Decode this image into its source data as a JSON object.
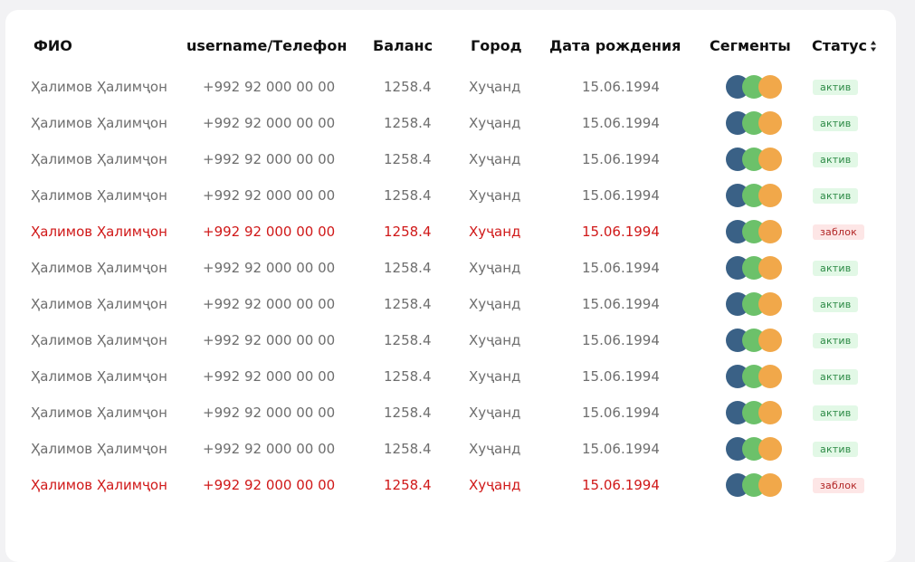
{
  "header": {
    "name": "ФИО",
    "phone": "username/Телефон",
    "balance": "Баланс",
    "city": "Город",
    "birthdate": "Дата рождения",
    "segments": "Сегменты",
    "status": "Статус"
  },
  "segment_colors": [
    "#3a6186",
    "#6cc16a",
    "#f1a84a"
  ],
  "status_colors": {
    "active_bg": "#e2f8e6",
    "active_text": "#2c8a45",
    "blocked_bg": "#fde6e6",
    "blocked_text": "#b12424",
    "blocked_row_text": "#d01818"
  },
  "rows": [
    {
      "name": "Ҳалимов Ҳалимҷон",
      "phone": "+992 92 000 00 00",
      "balance": "1258.4",
      "city": "Хуҷанд",
      "birthdate": "15.06.1994",
      "status": "актив",
      "blocked": false
    },
    {
      "name": "Ҳалимов Ҳалимҷон",
      "phone": "+992 92 000 00 00",
      "balance": "1258.4",
      "city": "Хуҷанд",
      "birthdate": "15.06.1994",
      "status": "актив",
      "blocked": false
    },
    {
      "name": "Ҳалимов Ҳалимҷон",
      "phone": "+992 92 000 00 00",
      "balance": "1258.4",
      "city": "Хуҷанд",
      "birthdate": "15.06.1994",
      "status": "актив",
      "blocked": false
    },
    {
      "name": "Ҳалимов Ҳалимҷон",
      "phone": "+992 92 000 00 00",
      "balance": "1258.4",
      "city": "Хуҷанд",
      "birthdate": "15.06.1994",
      "status": "актив",
      "blocked": false
    },
    {
      "name": "Ҳалимов Ҳалимҷон",
      "phone": "+992 92 000 00 00",
      "balance": "1258.4",
      "city": "Хуҷанд",
      "birthdate": "15.06.1994",
      "status": "заблок",
      "blocked": true
    },
    {
      "name": "Ҳалимов Ҳалимҷон",
      "phone": "+992 92 000 00 00",
      "balance": "1258.4",
      "city": "Хуҷанд",
      "birthdate": "15.06.1994",
      "status": "актив",
      "blocked": false
    },
    {
      "name": "Ҳалимов Ҳалимҷон",
      "phone": "+992 92 000 00 00",
      "balance": "1258.4",
      "city": "Хуҷанд",
      "birthdate": "15.06.1994",
      "status": "актив",
      "blocked": false
    },
    {
      "name": "Ҳалимов Ҳалимҷон",
      "phone": "+992 92 000 00 00",
      "balance": "1258.4",
      "city": "Хуҷанд",
      "birthdate": "15.06.1994",
      "status": "актив",
      "blocked": false
    },
    {
      "name": "Ҳалимов Ҳалимҷон",
      "phone": "+992 92 000 00 00",
      "balance": "1258.4",
      "city": "Хуҷанд",
      "birthdate": "15.06.1994",
      "status": "актив",
      "blocked": false
    },
    {
      "name": "Ҳалимов Ҳалимҷон",
      "phone": "+992 92 000 00 00",
      "balance": "1258.4",
      "city": "Хуҷанд",
      "birthdate": "15.06.1994",
      "status": "актив",
      "blocked": false
    },
    {
      "name": "Ҳалимов Ҳалимҷон",
      "phone": "+992 92 000 00 00",
      "balance": "1258.4",
      "city": "Хуҷанд",
      "birthdate": "15.06.1994",
      "status": "актив",
      "blocked": false
    },
    {
      "name": "Ҳалимов Ҳалимҷон",
      "phone": "+992 92 000 00 00",
      "balance": "1258.4",
      "city": "Хуҷанд",
      "birthdate": "15.06.1994",
      "status": "заблок",
      "blocked": true
    }
  ]
}
